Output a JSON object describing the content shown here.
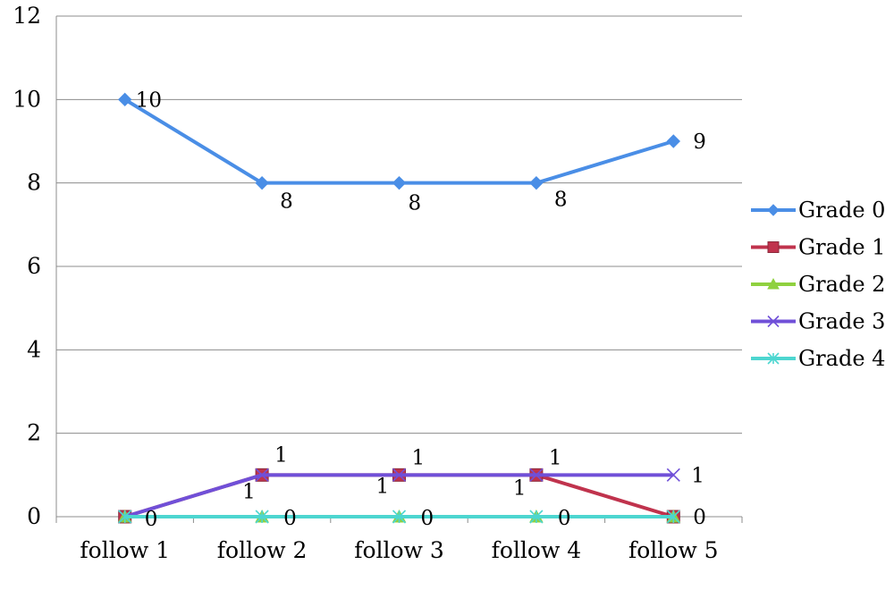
{
  "chart_data": {
    "type": "line",
    "title": "",
    "xlabel": "",
    "ylabel": "",
    "categories": [
      "follow 1",
      "follow 2",
      "follow 3",
      "follow 4",
      "follow 5"
    ],
    "ylim": [
      0,
      12
    ],
    "yticks": [
      0,
      2,
      4,
      6,
      8,
      10,
      12
    ],
    "grid": true,
    "legend_position": "right",
    "series": [
      {
        "name": "Grade 0",
        "values": [
          10,
          8,
          8,
          8,
          9
        ],
        "color": "#4a8ee6",
        "marker": "diamond",
        "labels": [
          "10",
          "8",
          "8",
          "8",
          "9"
        ]
      },
      {
        "name": "Grade 1",
        "values": [
          0,
          1,
          1,
          1,
          0
        ],
        "color": "#c0334d",
        "marker": "square",
        "labels": [
          "0",
          "1",
          "1",
          "1",
          "0"
        ]
      },
      {
        "name": "Grade 2",
        "values": [
          0,
          0,
          0,
          0,
          0
        ],
        "color": "#8fd13f",
        "marker": "triangle",
        "labels": []
      },
      {
        "name": "Grade 3",
        "values": [
          0,
          1,
          1,
          1,
          1
        ],
        "color": "#7050d8",
        "marker": "x",
        "labels": [
          "",
          "1",
          "1",
          "1",
          "1"
        ]
      },
      {
        "name": "Grade 4",
        "values": [
          0,
          0,
          0,
          0,
          0
        ],
        "color": "#4dd6d0",
        "marker": "asterisk",
        "labels": [
          "",
          "0",
          "0",
          "0",
          ""
        ]
      }
    ]
  }
}
